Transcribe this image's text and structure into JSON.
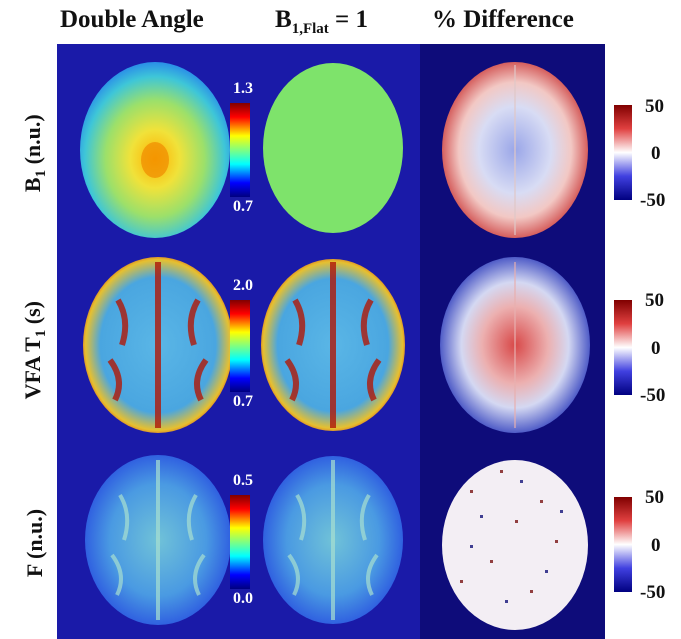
{
  "columns": {
    "double_angle": "Double  Angle",
    "b1_flat_prefix": "B",
    "b1_flat_sub": "1,Flat",
    "b1_flat_suffix": " = 1",
    "percent_diff": "% Difference"
  },
  "rows": {
    "b1_prefix": "B",
    "b1_sub": "1",
    "b1_suffix": " (n.u.)",
    "vfa_prefix": "VFA T",
    "vfa_sub": "1",
    "vfa_suffix": " (s)",
    "f_label": "F (n.u.)"
  },
  "colorbars": {
    "b1": {
      "max": "1.3",
      "min": "0.7"
    },
    "t1": {
      "max": "2.0",
      "min": "0.7"
    },
    "f": {
      "max": "0.5",
      "min": "0.0"
    },
    "diff1": {
      "max": "50",
      "mid": "0",
      "min": "-50"
    },
    "diff2": {
      "max": "50",
      "mid": "0",
      "min": "-50"
    },
    "diff3": {
      "max": "50",
      "mid": "0",
      "min": "-50"
    }
  },
  "colors": {
    "panel_bg": "#1a1aa8",
    "panel_bg_dark": "#0e0c7a",
    "flat_green": "#7ee36b"
  }
}
